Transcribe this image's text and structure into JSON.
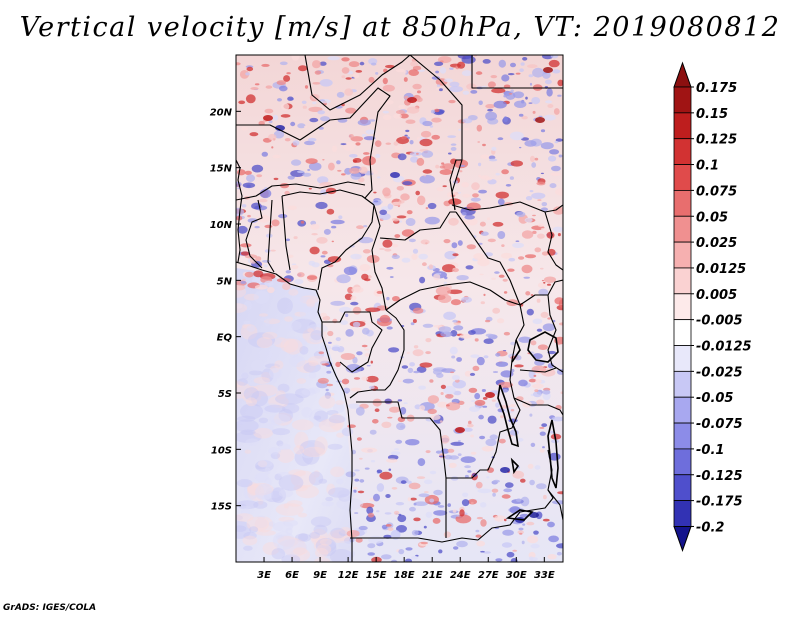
{
  "title": "Vertical velocity [m/s] at 850hPa, VT: 2019080812",
  "credit": "GrADS: IGES/COLA",
  "map": {
    "lon_range": [
      0,
      35
    ],
    "lat_range": [
      -20,
      25
    ],
    "lon_ticks": [
      {
        "value": 3,
        "label": "3E"
      },
      {
        "value": 6,
        "label": "6E"
      },
      {
        "value": 9,
        "label": "9E"
      },
      {
        "value": 12,
        "label": "12E"
      },
      {
        "value": 15,
        "label": "15E"
      },
      {
        "value": 18,
        "label": "18E"
      },
      {
        "value": 21,
        "label": "21E"
      },
      {
        "value": 24,
        "label": "24E"
      },
      {
        "value": 27,
        "label": "27E"
      },
      {
        "value": 30,
        "label": "30E"
      },
      {
        "value": 33,
        "label": "33E"
      }
    ],
    "lat_ticks": [
      {
        "value": 20,
        "label": "20N"
      },
      {
        "value": 15,
        "label": "15N"
      },
      {
        "value": 10,
        "label": "10N"
      },
      {
        "value": 5,
        "label": "5N"
      },
      {
        "value": 0,
        "label": "EQ"
      },
      {
        "value": -5,
        "label": "5S"
      },
      {
        "value": -10,
        "label": "10S"
      },
      {
        "value": -15,
        "label": "15S"
      }
    ]
  },
  "colorbar": {
    "levels": [
      {
        "label": "0.175",
        "color": "#a01414"
      },
      {
        "label": "0.15",
        "color": "#be1e1e"
      },
      {
        "label": "0.125",
        "color": "#d23232"
      },
      {
        "label": "0.1",
        "color": "#e04b4b"
      },
      {
        "label": "0.075",
        "color": "#e86e6e"
      },
      {
        "label": "0.05",
        "color": "#f09090"
      },
      {
        "label": "0.025",
        "color": "#f6b0b0"
      },
      {
        "label": "0.0125",
        "color": "#fad2d2"
      },
      {
        "label": "0.005",
        "color": "#fdeaea"
      },
      {
        "label": "-0.005",
        "color": "#ffffff"
      },
      {
        "label": "-0.0125",
        "color": "#e8e8fa"
      },
      {
        "label": "-0.025",
        "color": "#c8c8f5"
      },
      {
        "label": "-0.05",
        "color": "#a8a8f0"
      },
      {
        "label": "-0.075",
        "color": "#8c8ce8"
      },
      {
        "label": "-0.1",
        "color": "#6e6edc"
      },
      {
        "label": "-0.125",
        "color": "#4f4fcc"
      },
      {
        "label": "-0.175",
        "color": "#3232b4"
      },
      {
        "label": "-0.2",
        "color": "#1e1e96"
      }
    ],
    "top_color": "#8c1010",
    "bottom_color": "#14148c"
  }
}
